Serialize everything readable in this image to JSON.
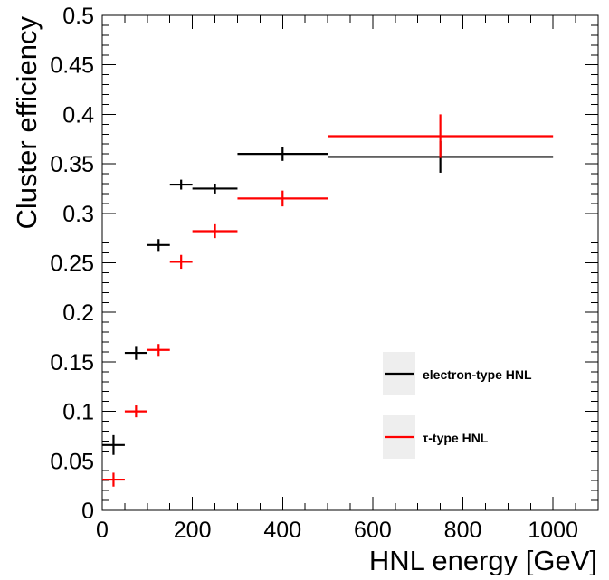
{
  "chart_data": {
    "type": "scatter",
    "xlabel": "HNL energy [GeV]",
    "ylabel": "Cluster efficiency",
    "xlim": [
      0,
      1100
    ],
    "ylim": [
      0,
      0.5
    ],
    "x_ticks": [
      "0",
      "200",
      "400",
      "600",
      "800",
      "1000"
    ],
    "y_ticks": [
      "0",
      "0.05",
      "0.1",
      "0.15",
      "0.2",
      "0.25",
      "0.3",
      "0.35",
      "0.4",
      "0.45",
      "0.5"
    ],
    "grid": false,
    "legend_placement": "bottom-right",
    "series": [
      {
        "name": "electron-type HNL",
        "color": "#000000",
        "points": [
          {
            "x": 25,
            "xlo": 0,
            "xhi": 50,
            "y": 0.066,
            "yerr": 0.01
          },
          {
            "x": 75,
            "xlo": 50,
            "xhi": 100,
            "y": 0.159,
            "yerr": 0.007
          },
          {
            "x": 125,
            "xlo": 100,
            "xhi": 150,
            "y": 0.268,
            "yerr": 0.006
          },
          {
            "x": 175,
            "xlo": 150,
            "xhi": 200,
            "y": 0.329,
            "yerr": 0.005
          },
          {
            "x": 250,
            "xlo": 200,
            "xhi": 300,
            "y": 0.325,
            "yerr": 0.005
          },
          {
            "x": 400,
            "xlo": 300,
            "xhi": 500,
            "y": 0.36,
            "yerr": 0.007
          },
          {
            "x": 750,
            "xlo": 500,
            "xhi": 1000,
            "y": 0.357,
            "yerr": 0.016
          }
        ]
      },
      {
        "name": "τ-type HNL",
        "color": "#ff0000",
        "points": [
          {
            "x": 25,
            "xlo": 0,
            "xhi": 50,
            "y": 0.031,
            "yerr": 0.007
          },
          {
            "x": 75,
            "xlo": 50,
            "xhi": 100,
            "y": 0.1,
            "yerr": 0.006
          },
          {
            "x": 125,
            "xlo": 100,
            "xhi": 150,
            "y": 0.162,
            "yerr": 0.006
          },
          {
            "x": 175,
            "xlo": 150,
            "xhi": 200,
            "y": 0.251,
            "yerr": 0.007
          },
          {
            "x": 250,
            "xlo": 200,
            "xhi": 300,
            "y": 0.282,
            "yerr": 0.007
          },
          {
            "x": 400,
            "xlo": 300,
            "xhi": 500,
            "y": 0.315,
            "yerr": 0.008
          },
          {
            "x": 750,
            "xlo": 500,
            "xhi": 1000,
            "y": 0.378,
            "yerr": 0.022
          }
        ]
      }
    ]
  }
}
